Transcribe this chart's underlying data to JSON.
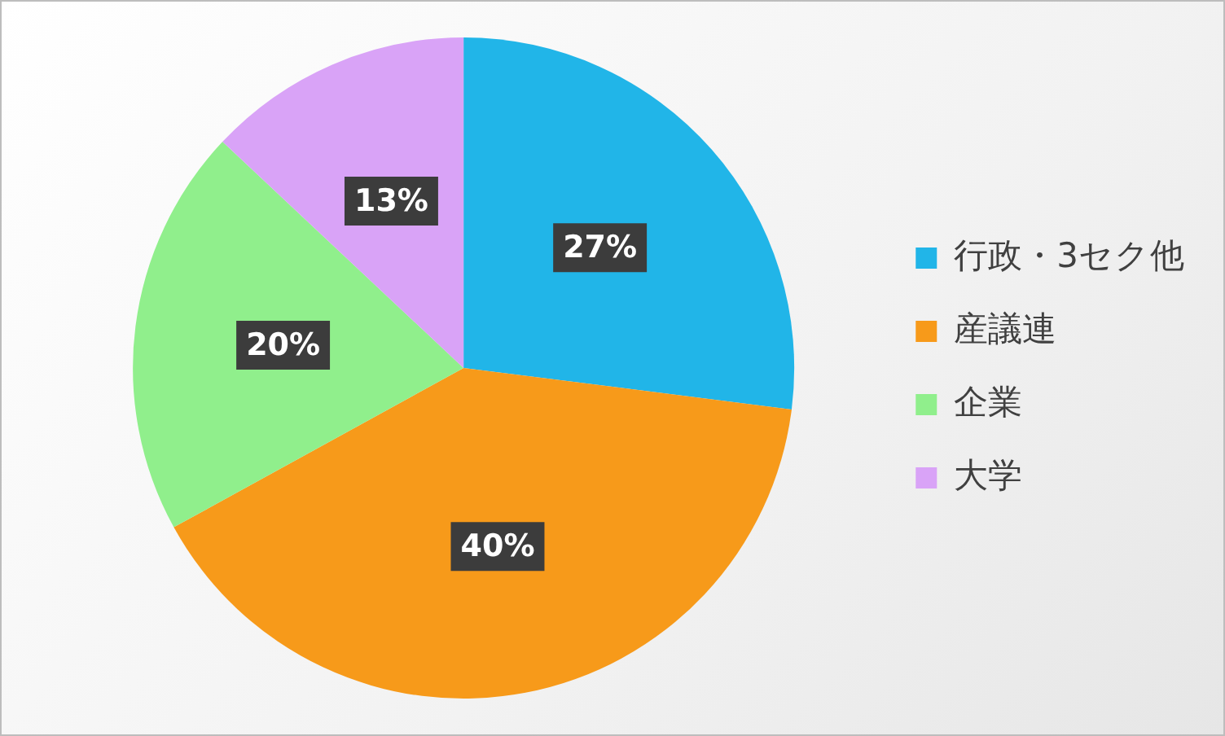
{
  "chart_data": {
    "type": "pie",
    "categories": [
      "行政・3セク他",
      "産議連",
      "企業",
      "大学"
    ],
    "values": [
      27,
      40,
      20,
      13
    ],
    "colors": [
      "#21b5e8",
      "#f79a1a",
      "#90ef8c",
      "#d9a3f7"
    ],
    "value_labels": [
      "27%",
      "40%",
      "20%",
      "13%"
    ],
    "legend": "right"
  }
}
